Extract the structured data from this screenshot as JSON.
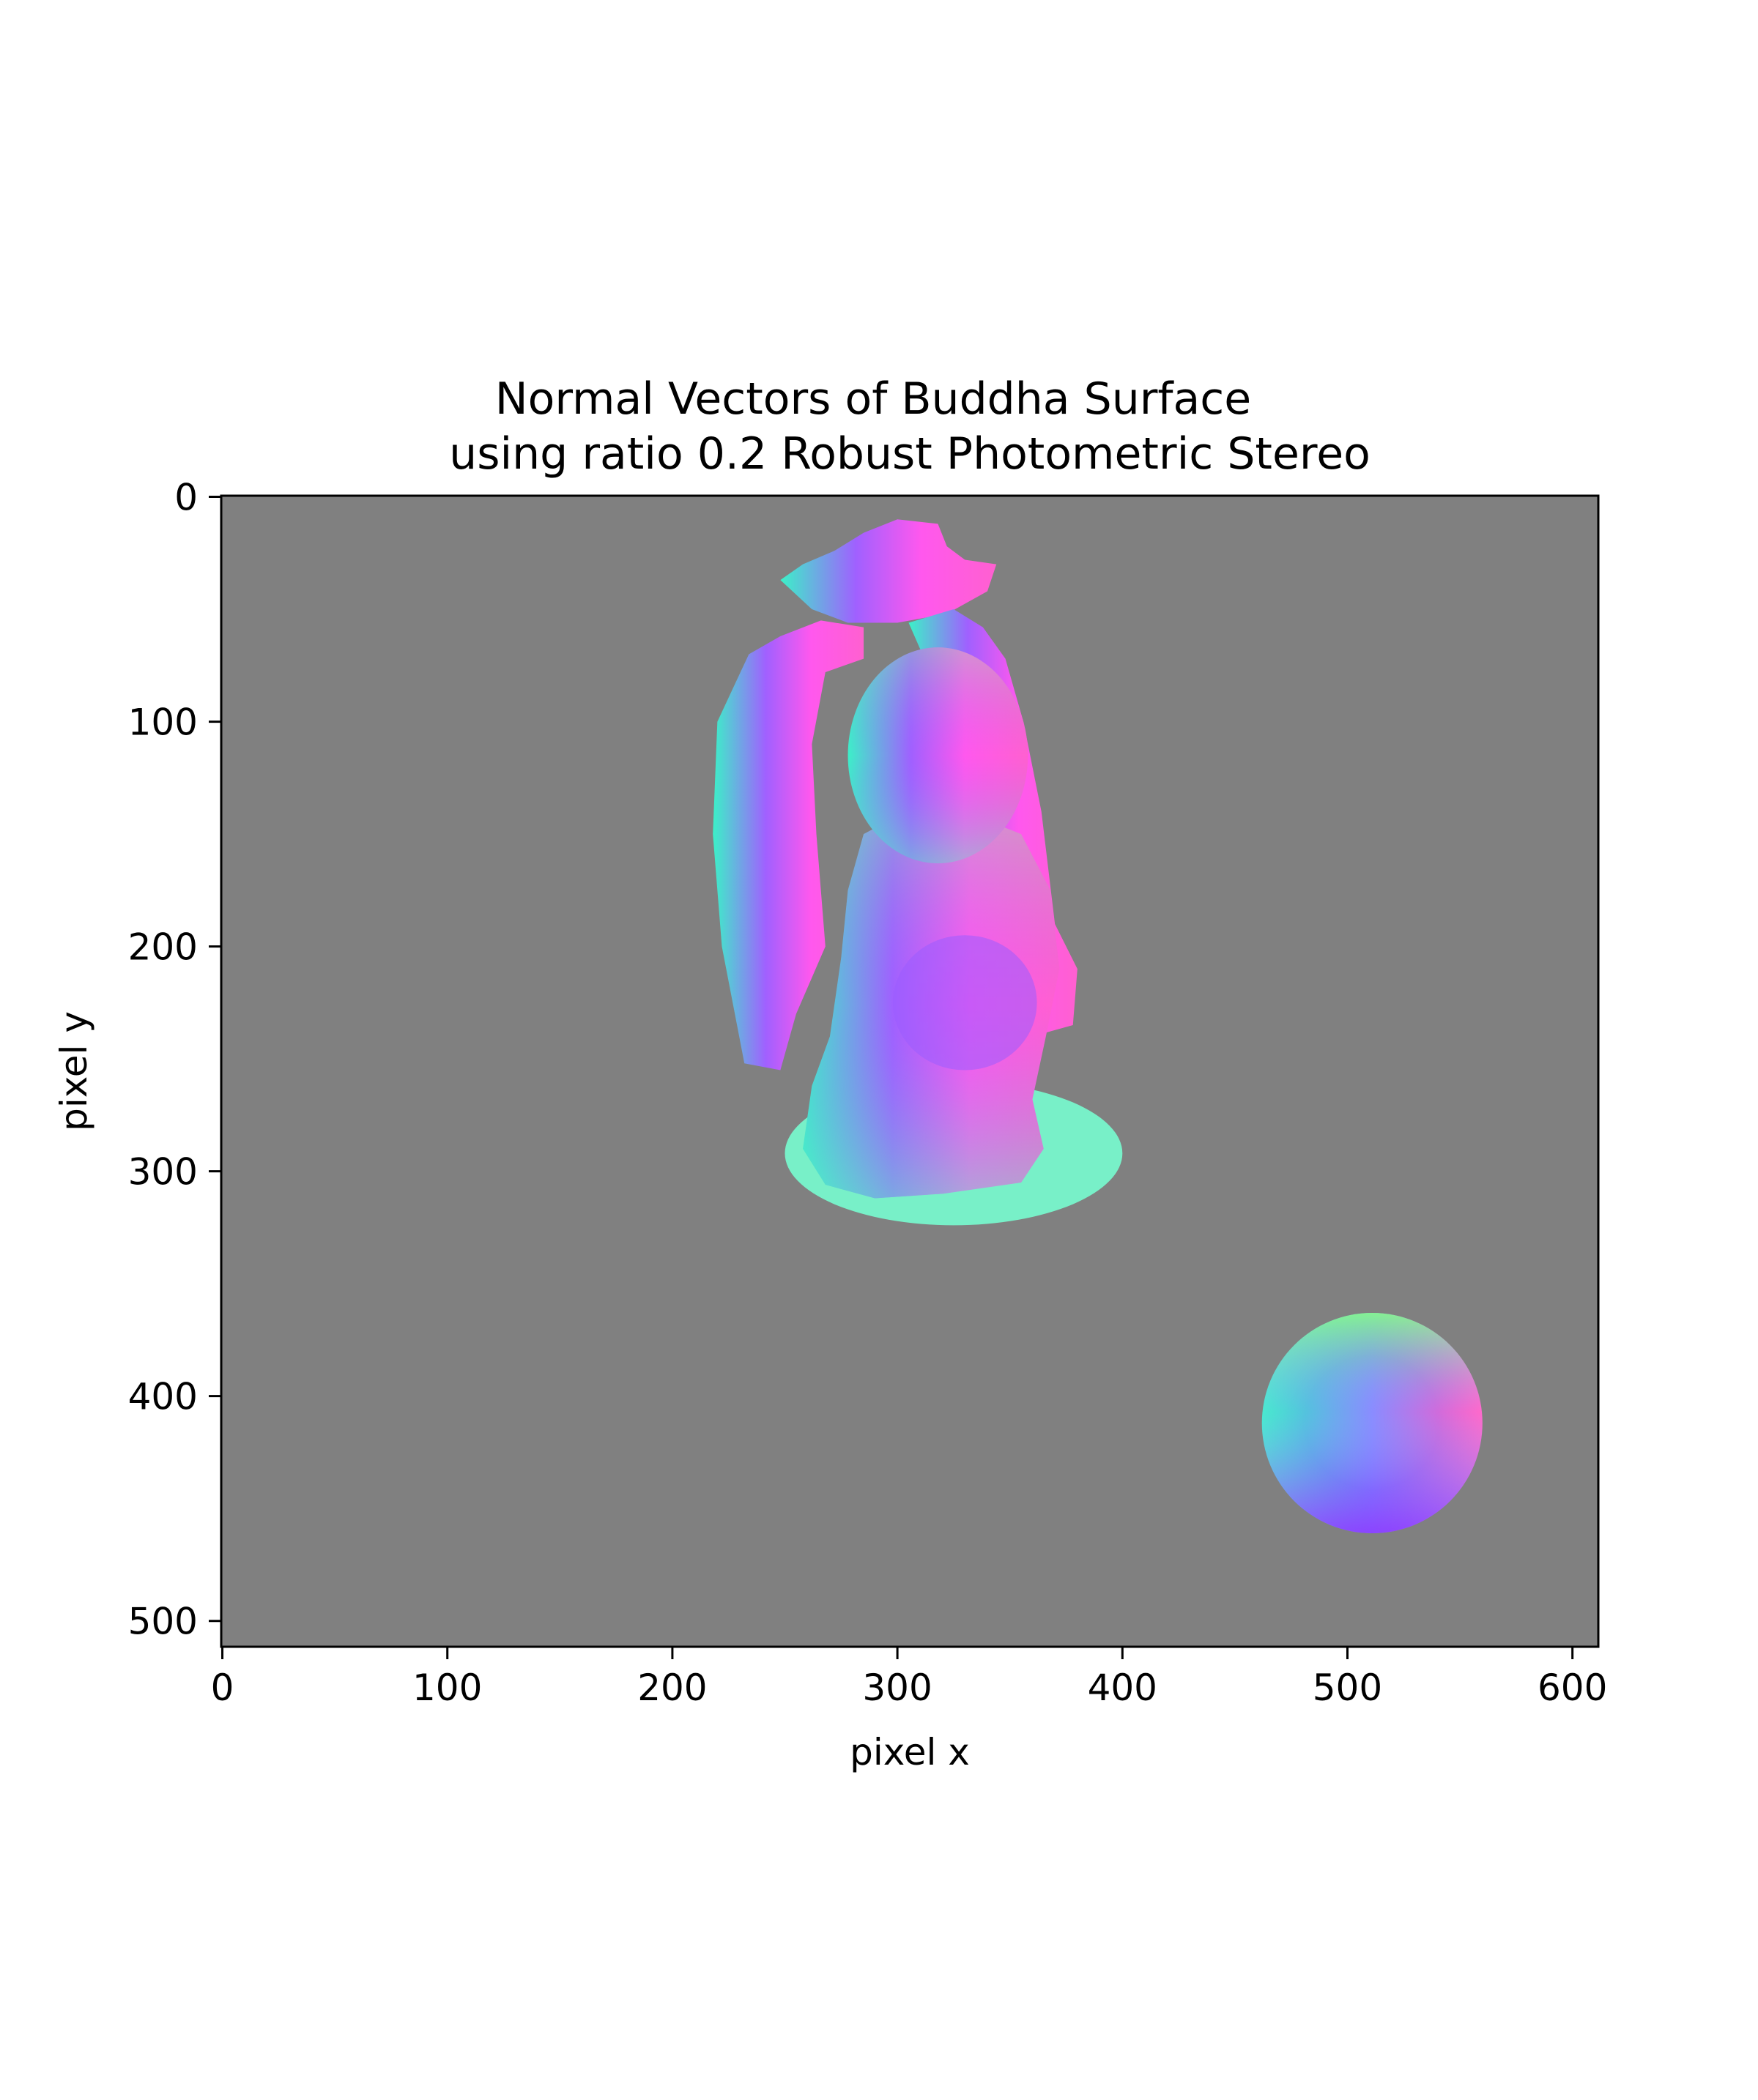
{
  "chart_data": {
    "type": "heatmap",
    "title": [
      "Normal Vectors of Buddha Surface",
      "using ratio 0.2 Robust Photometric Stereo"
    ],
    "xlabel": "pixel x",
    "ylabel": "pixel y",
    "xlim": [
      -0.5,
      611.5
    ],
    "ylim": [
      511.5,
      -0.5
    ],
    "x_ticks": [
      0,
      100,
      200,
      300,
      400,
      500,
      600
    ],
    "y_ticks": [
      0,
      100,
      200,
      300,
      400,
      500
    ],
    "y_inverted": true,
    "background_color": "#808080",
    "objects": [
      {
        "kind": "statue-normal-map",
        "x_range": [
          217,
          400
        ],
        "y_range": [
          12,
          323
        ]
      },
      {
        "kind": "calibration-sphere-normal-map",
        "center": [
          511,
          412
        ],
        "radius": 49
      }
    ],
    "colors": {
      "red": "#ff50ff",
      "green": "#50ff90",
      "blue": "#5050ff"
    }
  }
}
